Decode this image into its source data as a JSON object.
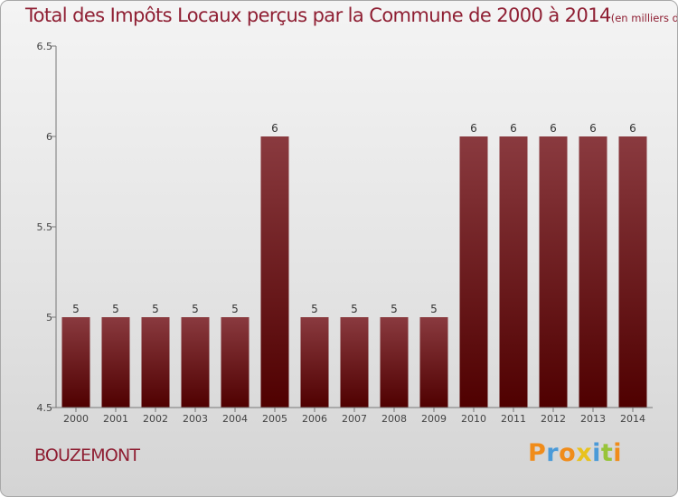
{
  "chart_data": {
    "type": "bar",
    "title": "Total des Impôts Locaux perçus par la Commune de 2000 à 2014",
    "unit": "(en milliers d'€)",
    "xlabel": "",
    "ylabel": "",
    "categories": [
      "2000",
      "2001",
      "2002",
      "2003",
      "2004",
      "2005",
      "2006",
      "2007",
      "2008",
      "2009",
      "2010",
      "2011",
      "2012",
      "2013",
      "2014"
    ],
    "values": [
      5,
      5,
      5,
      5,
      5,
      6,
      5,
      5,
      5,
      5,
      6,
      6,
      6,
      6,
      6
    ],
    "ylim": [
      4.5,
      6.5
    ],
    "yticks": [
      4.5,
      5,
      5.5,
      6,
      6.5
    ],
    "ytick_labels": [
      "4.5",
      "5",
      "5.5",
      "6",
      "6.5"
    ],
    "grid": false,
    "bar_color": "#6b0f1a"
  },
  "footer": {
    "commune": "BOUZEMONT",
    "brand": "Proxiti"
  },
  "colors": {
    "title": "#8f1f33",
    "brand_letters": [
      "#f08c1a",
      "#4a9ad8",
      "#f08c1a",
      "#e8c21e",
      "#4a9ad8",
      "#98c43a",
      "#f08c1a"
    ]
  }
}
